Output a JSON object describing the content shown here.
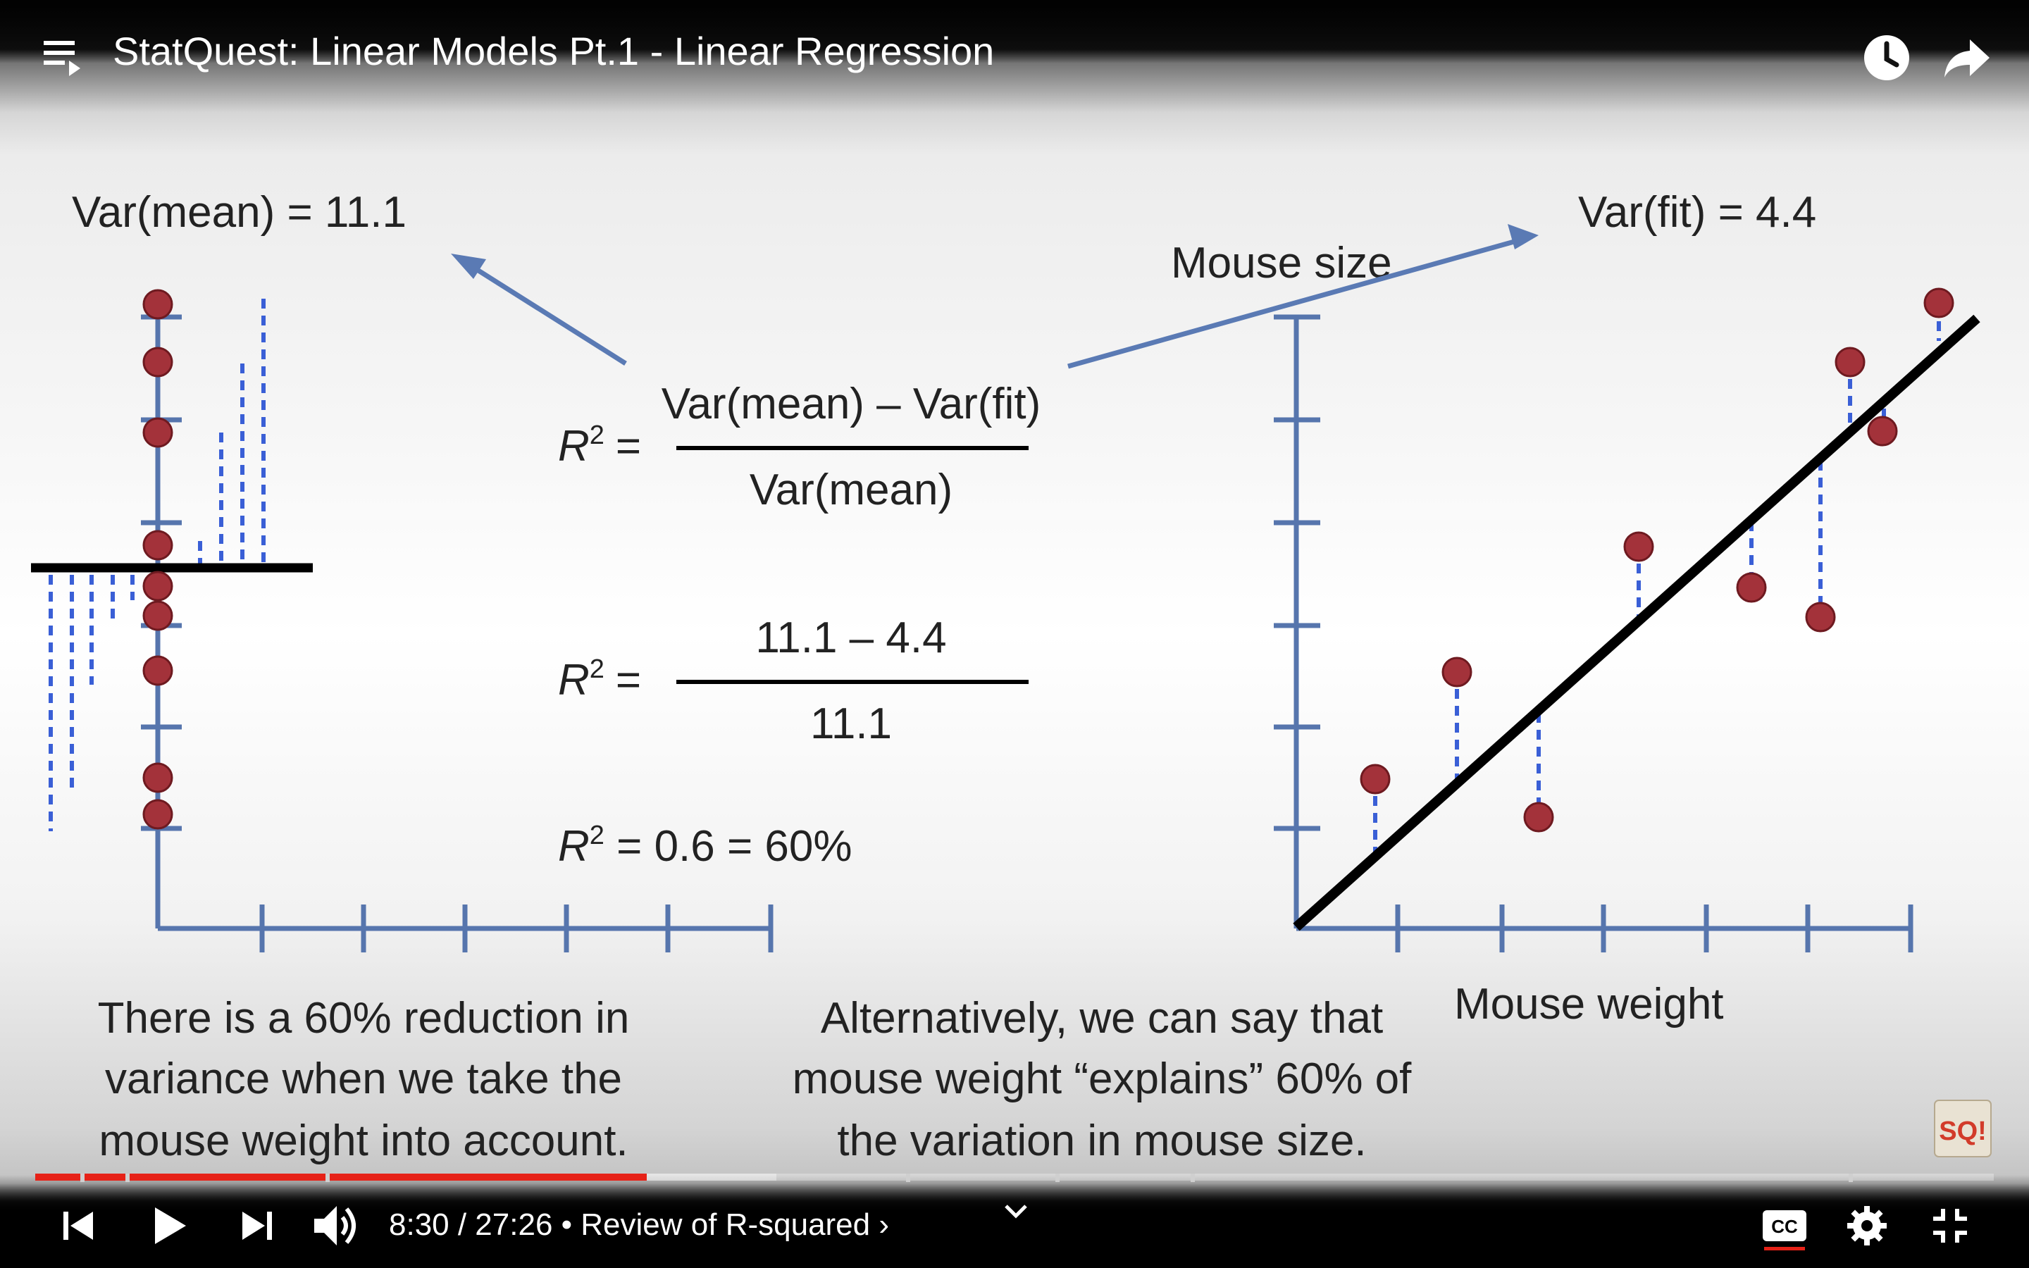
{
  "player": {
    "title": "StatQuest: Linear Models Pt.1 - Linear Regression",
    "time_label": "8:30 / 27:26",
    "separator": " • ",
    "chapter_label": "Review of R-squared",
    "chapter_chevron": "›",
    "progress_fraction": 0.31,
    "buffered_fraction": 0.39,
    "progress_color": "#e62117",
    "icons": [
      "playlist-icon",
      "watch-later-icon",
      "share-icon",
      "skip-previous-icon",
      "play-icon",
      "skip-next-icon",
      "volume-icon",
      "chevron-down-icon",
      "captions-icon",
      "settings-icon",
      "exit-fullscreen-icon"
    ]
  },
  "slide": {
    "var_mean_label": "Var(mean) = 11.1",
    "var_fit_label": "Var(fit) = 4.4",
    "y_axis_label": "Mouse size",
    "x_axis_label": "Mouse weight",
    "r2_symbol": "R",
    "r2_superscript": "2",
    "equals": "=",
    "formula_numerator": "Var(mean) – Var(fit)",
    "formula_denominator": "Var(mean)",
    "numeric_numerator": "11.1 – 4.4",
    "numeric_denominator": "11.1",
    "result_text": " = 0.6 = 60%",
    "left_caption_lines": [
      "There is a 60% reduction in",
      "variance when we take the",
      "mouse weight into account."
    ],
    "right_caption_lines": [
      "Alternatively, we can say that",
      "mouse weight “explains” 60% of",
      "the variation in mouse size."
    ],
    "logo_text": "SQ!",
    "point_color": "#a3323a",
    "axis_color": "#5675ad",
    "residual_color": "#3a5fd6",
    "arrow_color": "#5a7ab4"
  }
}
